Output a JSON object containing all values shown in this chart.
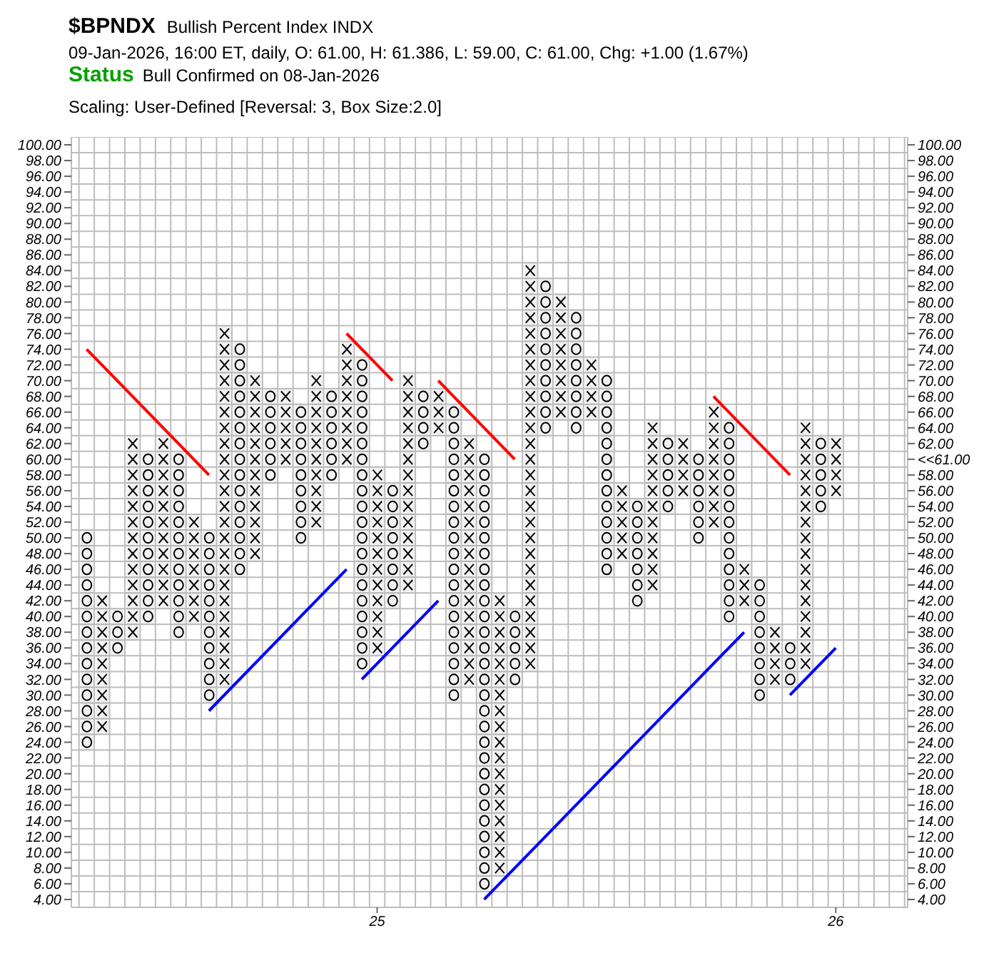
{
  "chart_data": {
    "type": "bar",
    "title": "$BPNDX",
    "subtitle": "Bullish Percent Index  INDX",
    "annotations": [
      "09-Jan-2026, 16:00 ET, daily, O: 61.00, H: 61.386, L: 59.00, C: 61.00, Chg: +1.00 (1.67%)",
      "Status",
      "Bull Confirmed on 08-Jan-2026",
      "Scaling: User-Defined [Reversal: 3, Box Size:2.0]"
    ],
    "categories": [
      null,
      null,
      null,
      null,
      null,
      null,
      null,
      null,
      null,
      null,
      null,
      null,
      null,
      null,
      null,
      null,
      null,
      null,
      null,
      "25",
      null,
      null,
      null,
      null,
      null,
      null,
      null,
      null,
      null,
      null,
      null,
      null,
      null,
      null,
      null,
      null,
      null,
      null,
      null,
      null,
      null,
      null,
      null,
      null,
      null,
      null,
      null,
      null,
      null,
      "26"
    ],
    "series": [
      {
        "marker": "circle",
        "color": "#000000",
        "values": [
          28,
          null,
          6,
          null,
          22,
          null,
          24,
          null,
          22,
          null,
          30,
          null,
          12,
          null,
          18,
          null,
          12,
          null,
          40,
          null,
          16,
          null,
          8,
          null,
          38,
          null,
          56,
          null,
          10,
          null,
          20,
          null,
          16,
          null,
          26,
          null,
          14,
          null,
          10,
          null,
          12,
          null,
          26,
          null,
          16,
          null,
          6,
          null,
          10,
          null
        ],
        "base": [
          23,
          null,
          35,
          null,
          39,
          null,
          37,
          null,
          29,
          null,
          45,
          null,
          57,
          null,
          49,
          null,
          57,
          null,
          33,
          null,
          41,
          null,
          61,
          null,
          29,
          null,
          5,
          null,
          31,
          null,
          63,
          null,
          63,
          null,
          45,
          null,
          41,
          null,
          53,
          null,
          49,
          null,
          39,
          null,
          29,
          null,
          31,
          null,
          53,
          null
        ]
      },
      {
        "marker": "cross",
        "color": "#000000",
        "values": [
          null,
          18,
          null,
          26,
          null,
          22,
          null,
          14,
          null,
          46,
          null,
          24,
          null,
          10,
          null,
          20,
          null,
          16,
          null,
          24,
          null,
          28,
          null,
          6,
          null,
          32,
          null,
          36,
          null,
          52,
          null,
          16,
          null,
          8,
          null,
          10,
          null,
          22,
          null,
          8,
          null,
          16,
          null,
          6,
          null,
          8,
          null,
          32,
          null,
          8
        ],
        "base": [
          null,
          25,
          null,
          37,
          null,
          41,
          null,
          39,
          null,
          31,
          null,
          47,
          null,
          59,
          null,
          51,
          null,
          59,
          null,
          35,
          null,
          43,
          null,
          63,
          null,
          31,
          null,
          7,
          null,
          33,
          null,
          65,
          null,
          65,
          null,
          47,
          null,
          43,
          null,
          55,
          null,
          51,
          null,
          41,
          null,
          31,
          null,
          33,
          null,
          55
        ]
      },
      {
        "type": "line",
        "color": "#ff0000",
        "values": [
          74,
          null,
          null,
          null,
          null,
          null,
          null,
          null,
          58,
          null,
          null,
          null,
          null,
          null,
          null,
          null,
          null,
          null,
          null,
          null,
          null,
          null,
          null,
          null,
          null,
          null,
          null,
          null,
          null,
          null,
          null,
          null,
          null,
          null,
          null,
          null,
          null,
          null,
          null,
          null,
          null,
          null,
          null,
          null,
          null,
          null,
          null,
          null,
          null,
          null
        ]
      },
      {
        "type": "line",
        "color": "#0000ff",
        "values": [
          null,
          null,
          null,
          null,
          null,
          null,
          null,
          null,
          28,
          null,
          null,
          null,
          null,
          null,
          null,
          null,
          null,
          46,
          null,
          null,
          null,
          null,
          null,
          null,
          null,
          null,
          null,
          null,
          null,
          null,
          null,
          null,
          null,
          null,
          null,
          null,
          null,
          null,
          null,
          null,
          null,
          null,
          null,
          null,
          null,
          null,
          null,
          null,
          null,
          null
        ]
      },
      {
        "type": "line",
        "color": "#ff0000",
        "values": [
          null,
          null,
          null,
          null,
          null,
          null,
          null,
          null,
          null,
          null,
          null,
          null,
          null,
          null,
          null,
          null,
          null,
          76,
          null,
          null,
          70,
          null,
          null,
          null,
          null,
          null,
          null,
          null,
          null,
          null,
          null,
          null,
          null,
          null,
          null,
          null,
          null,
          null,
          null,
          null,
          null,
          null,
          null,
          null,
          null,
          null,
          null,
          null,
          null,
          null
        ]
      },
      {
        "type": "line",
        "color": "#0000ff",
        "values": [
          null,
          null,
          null,
          null,
          null,
          null,
          null,
          null,
          null,
          null,
          null,
          null,
          null,
          null,
          null,
          null,
          null,
          null,
          32,
          null,
          null,
          null,
          null,
          42,
          null,
          null,
          null,
          null,
          null,
          null,
          null,
          null,
          null,
          null,
          null,
          null,
          null,
          null,
          null,
          null,
          null,
          null,
          null,
          null,
          null,
          null,
          null,
          null,
          null,
          null
        ]
      },
      {
        "type": "line",
        "color": "#ff0000",
        "values": [
          null,
          null,
          null,
          null,
          null,
          null,
          null,
          null,
          null,
          null,
          null,
          null,
          null,
          null,
          null,
          null,
          null,
          null,
          null,
          null,
          null,
          null,
          null,
          70,
          null,
          null,
          null,
          null,
          60,
          null,
          null,
          null,
          null,
          null,
          null,
          null,
          null,
          null,
          null,
          null,
          null,
          null,
          null,
          null,
          null,
          null,
          null,
          null,
          null,
          null
        ]
      },
      {
        "type": "line",
        "color": "#0000ff",
        "values": [
          null,
          null,
          null,
          null,
          null,
          null,
          null,
          null,
          null,
          null,
          null,
          null,
          null,
          null,
          null,
          null,
          null,
          null,
          null,
          null,
          null,
          null,
          null,
          null,
          null,
          null,
          4,
          null,
          null,
          null,
          null,
          null,
          null,
          null,
          null,
          null,
          null,
          null,
          null,
          null,
          null,
          null,
          null,
          38,
          null,
          null,
          null,
          null,
          null,
          null
        ]
      },
      {
        "type": "line",
        "color": "#ff0000",
        "values": [
          null,
          null,
          null,
          null,
          null,
          null,
          null,
          null,
          null,
          null,
          null,
          null,
          null,
          null,
          null,
          null,
          null,
          null,
          null,
          null,
          null,
          null,
          null,
          null,
          null,
          null,
          null,
          null,
          null,
          null,
          null,
          null,
          null,
          null,
          null,
          null,
          null,
          null,
          null,
          null,
          null,
          68,
          null,
          null,
          null,
          null,
          58,
          null,
          null,
          null
        ]
      },
      {
        "type": "line",
        "color": "#0000ff",
        "values": [
          null,
          null,
          null,
          null,
          null,
          null,
          null,
          null,
          null,
          null,
          null,
          null,
          null,
          null,
          null,
          null,
          null,
          null,
          null,
          null,
          null,
          null,
          null,
          null,
          null,
          null,
          null,
          null,
          null,
          null,
          null,
          null,
          null,
          null,
          null,
          null,
          null,
          null,
          null,
          null,
          null,
          null,
          null,
          null,
          null,
          null,
          30,
          null,
          null,
          36
        ]
      }
    ],
    "ylim": [
      3,
      101
    ],
    "yticks": [
      {
        "value": 4,
        "label": "4.00"
      },
      {
        "value": 6,
        "label": "6.00"
      },
      {
        "value": 8,
        "label": "8.00"
      },
      {
        "value": 10,
        "label": "10.00"
      },
      {
        "value": 12,
        "label": "12.00"
      },
      {
        "value": 14,
        "label": "14.00"
      },
      {
        "value": 16,
        "label": "16.00"
      },
      {
        "value": 18,
        "label": "18.00"
      },
      {
        "value": 20,
        "label": "20.00"
      },
      {
        "value": 22,
        "label": "22.00"
      },
      {
        "value": 24,
        "label": "24.00"
      },
      {
        "value": 26,
        "label": "26.00"
      },
      {
        "value": 28,
        "label": "28.00"
      },
      {
        "value": 30,
        "label": "30.00"
      },
      {
        "value": 32,
        "label": "32.00"
      },
      {
        "value": 34,
        "label": "34.00"
      },
      {
        "value": 36,
        "label": "36.00"
      },
      {
        "value": 38,
        "label": "38.00"
      },
      {
        "value": 40,
        "label": "40.00"
      },
      {
        "value": 42,
        "label": "42.00"
      },
      {
        "value": 44,
        "label": "44.00"
      },
      {
        "value": 46,
        "label": "46.00"
      },
      {
        "value": 48,
        "label": "48.00"
      },
      {
        "value": 50,
        "label": "50.00"
      },
      {
        "value": 52,
        "label": "52.00"
      },
      {
        "value": 54,
        "label": "54.00"
      },
      {
        "value": 56,
        "label": "56.00"
      },
      {
        "value": 58,
        "label": "58.00"
      },
      {
        "value": 60,
        "label": "60.00"
      },
      {
        "value": 62,
        "label": "62.00"
      },
      {
        "value": 64,
        "label": "64.00"
      },
      {
        "value": 66,
        "label": "66.00"
      },
      {
        "value": 68,
        "label": "68.00"
      },
      {
        "value": 70,
        "label": "70.00"
      },
      {
        "value": 72,
        "label": "72.00"
      },
      {
        "value": 74,
        "label": "74.00"
      },
      {
        "value": 76,
        "label": "76.00"
      },
      {
        "value": 78,
        "label": "78.00"
      },
      {
        "value": 80,
        "label": "80.00"
      },
      {
        "value": 82,
        "label": "82.00"
      },
      {
        "value": 84,
        "label": "84.00"
      },
      {
        "value": 86,
        "label": "86.00"
      },
      {
        "value": 88,
        "label": "88.00"
      },
      {
        "value": 90,
        "label": "90.00"
      },
      {
        "value": 92,
        "label": "92.00"
      },
      {
        "value": 94,
        "label": "94.00"
      },
      {
        "value": 96,
        "label": "96.00"
      },
      {
        "value": 98,
        "label": "98.00"
      },
      {
        "value": 100,
        "label": "100.00"
      }
    ],
    "y2lim": [
      3,
      101
    ],
    "y2ticks": [
      {
        "value": 4,
        "label": "4.00"
      },
      {
        "value": 6,
        "label": "6.00"
      },
      {
        "value": 8,
        "label": "8.00"
      },
      {
        "value": 10,
        "label": "10.00"
      },
      {
        "value": 12,
        "label": "12.00"
      },
      {
        "value": 14,
        "label": "14.00"
      },
      {
        "value": 16,
        "label": "16.00"
      },
      {
        "value": 18,
        "label": "18.00"
      },
      {
        "value": 20,
        "label": "20.00"
      },
      {
        "value": 22,
        "label": "22.00"
      },
      {
        "value": 24,
        "label": "24.00"
      },
      {
        "value": 26,
        "label": "26.00"
      },
      {
        "value": 28,
        "label": "28.00"
      },
      {
        "value": 30,
        "label": "30.00"
      },
      {
        "value": 32,
        "label": "32.00"
      },
      {
        "value": 34,
        "label": "34.00"
      },
      {
        "value": 36,
        "label": "36.00"
      },
      {
        "value": 38,
        "label": "38.00"
      },
      {
        "value": 40,
        "label": "40.00"
      },
      {
        "value": 42,
        "label": "42.00"
      },
      {
        "value": 44,
        "label": "44.00"
      },
      {
        "value": 46,
        "label": "46.00"
      },
      {
        "value": 48,
        "label": "48.00"
      },
      {
        "value": 50,
        "label": "50.00"
      },
      {
        "value": 52,
        "label": "52.00"
      },
      {
        "value": 54,
        "label": "54.00"
      },
      {
        "value": 56,
        "label": "56.00"
      },
      {
        "value": 58,
        "label": "58.00"
      },
      {
        "value": 60,
        "label": "<<61.00"
      },
      {
        "value": 62,
        "label": "62.00"
      },
      {
        "value": 64,
        "label": "64.00"
      },
      {
        "value": 66,
        "label": "66.00"
      },
      {
        "value": 68,
        "label": "68.00"
      },
      {
        "value": 70,
        "label": "70.00"
      },
      {
        "value": 72,
        "label": "72.00"
      },
      {
        "value": 74,
        "label": "74.00"
      },
      {
        "value": 76,
        "label": "76.00"
      },
      {
        "value": 78,
        "label": "78.00"
      },
      {
        "value": 80,
        "label": "80.00"
      },
      {
        "value": 82,
        "label": "82.00"
      },
      {
        "value": 84,
        "label": "84.00"
      },
      {
        "value": 86,
        "label": "86.00"
      },
      {
        "value": 88,
        "label": "88.00"
      },
      {
        "value": 90,
        "label": "90.00"
      },
      {
        "value": 92,
        "label": "92.00"
      },
      {
        "value": 94,
        "label": "94.00"
      },
      {
        "value": 96,
        "label": "96.00"
      },
      {
        "value": 98,
        "label": "98.00"
      },
      {
        "value": 100,
        "label": "100.00"
      }
    ],
    "grid": true,
    "legend": false
  }
}
